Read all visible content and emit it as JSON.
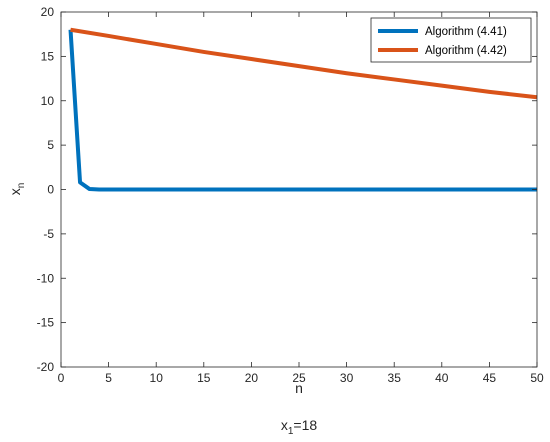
{
  "chart_data": {
    "type": "line",
    "x_ticks": [
      0,
      5,
      10,
      15,
      20,
      25,
      30,
      35,
      40,
      45,
      50
    ],
    "y_ticks": [
      -20,
      -15,
      -10,
      -5,
      0,
      5,
      10,
      15,
      20
    ],
    "xlim": [
      0,
      50
    ],
    "ylim": [
      -20,
      20
    ],
    "xlabel": "n",
    "ylabel": {
      "base": "x",
      "sub": "n"
    },
    "caption": {
      "base": "x",
      "sub": "1",
      "rest": "=18"
    },
    "grid": false,
    "legend_position": "top-right",
    "series": [
      {
        "name": "Algorithm (4.41)",
        "color": "#0072BD",
        "x": [
          1,
          2,
          3,
          4,
          5,
          10,
          15,
          20,
          25,
          30,
          35,
          40,
          45,
          50
        ],
        "y": [
          18,
          0.8,
          0.05,
          0,
          0,
          0,
          0,
          0,
          0,
          0,
          0,
          0,
          0,
          0
        ]
      },
      {
        "name": "Algorithm (4.42)",
        "color": "#D95319",
        "x": [
          1,
          5,
          10,
          15,
          20,
          25,
          30,
          35,
          40,
          45,
          50
        ],
        "y": [
          18,
          17.3,
          16.4,
          15.5,
          14.7,
          13.9,
          13.1,
          12.4,
          11.7,
          11.0,
          10.4
        ]
      }
    ]
  }
}
